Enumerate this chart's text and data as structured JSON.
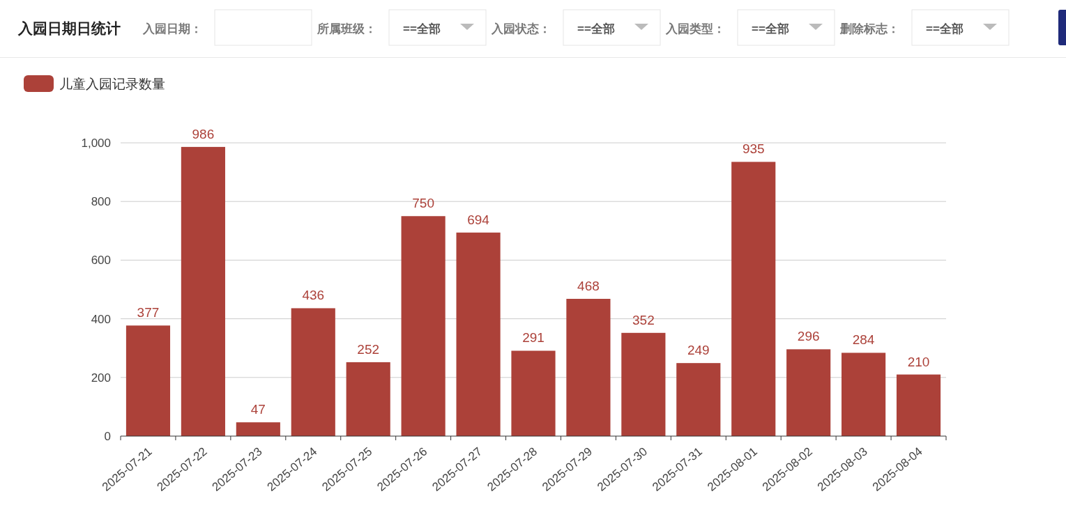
{
  "chart_data": {
    "type": "bar",
    "title": "入园日期日统计",
    "annotations": [
      "入园日期：",
      "所属班级：",
      "==全部",
      "入园状态：",
      "==全部",
      "入园类型：",
      "==全部",
      "删除标志：",
      "==全部"
    ],
    "categories": [
      "2025-07-21",
      "2025-07-22",
      "2025-07-23",
      "2025-07-24",
      "2025-07-25",
      "2025-07-26",
      "2025-07-27",
      "2025-07-28",
      "2025-07-29",
      "2025-07-30",
      "2025-07-31",
      "2025-08-01",
      "2025-08-02",
      "2025-08-03",
      "2025-08-04"
    ],
    "series": [
      {
        "name": "儿童入园记录数量",
        "color": "#ac4139",
        "values": [
          377,
          986,
          47,
          436,
          252,
          750,
          694,
          291,
          468,
          352,
          249,
          935,
          296,
          284,
          210
        ]
      }
    ],
    "ylim": [
      0,
      1000
    ],
    "yticks": [
      0,
      200,
      400,
      600,
      800,
      {
        "value": 1000,
        "label": "1,000"
      }
    ],
    "grid": "y",
    "legend": "top left",
    "data_labels": true
  }
}
